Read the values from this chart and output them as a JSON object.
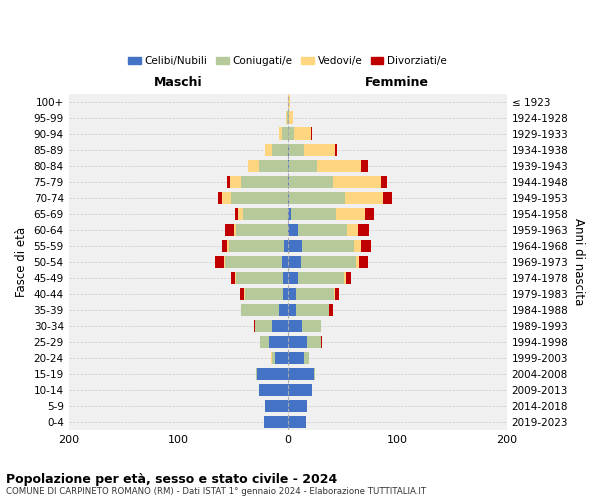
{
  "age_groups": [
    "0-4",
    "5-9",
    "10-14",
    "15-19",
    "20-24",
    "25-29",
    "30-34",
    "35-39",
    "40-44",
    "45-49",
    "50-54",
    "55-59",
    "60-64",
    "65-69",
    "70-74",
    "75-79",
    "80-84",
    "85-89",
    "90-94",
    "95-99",
    "100+"
  ],
  "birth_years": [
    "2019-2023",
    "2014-2018",
    "2009-2013",
    "2004-2008",
    "1999-2003",
    "1994-1998",
    "1989-1993",
    "1984-1988",
    "1979-1983",
    "1974-1978",
    "1969-1973",
    "1964-1968",
    "1959-1963",
    "1954-1958",
    "1949-1953",
    "1944-1948",
    "1939-1943",
    "1934-1938",
    "1929-1933",
    "1924-1928",
    "≤ 1923"
  ],
  "male": {
    "celibi": [
      22,
      21,
      26,
      28,
      12,
      17,
      14,
      8,
      4,
      4,
      5,
      3,
      0,
      0,
      0,
      0,
      0,
      0,
      0,
      0,
      0
    ],
    "coniugati": [
      0,
      0,
      0,
      1,
      2,
      8,
      16,
      35,
      35,
      43,
      52,
      51,
      47,
      41,
      52,
      43,
      26,
      14,
      5,
      1,
      0
    ],
    "vedovi": [
      0,
      0,
      0,
      0,
      1,
      0,
      0,
      0,
      1,
      1,
      1,
      1,
      2,
      4,
      8,
      10,
      10,
      7,
      3,
      1,
      0
    ],
    "divorziati": [
      0,
      0,
      0,
      0,
      0,
      0,
      1,
      0,
      4,
      4,
      8,
      5,
      8,
      3,
      4,
      2,
      0,
      0,
      0,
      0,
      0
    ]
  },
  "female": {
    "nubili": [
      17,
      18,
      22,
      24,
      15,
      18,
      13,
      8,
      8,
      9,
      12,
      13,
      9,
      3,
      1,
      1,
      1,
      1,
      0,
      0,
      0
    ],
    "coniugate": [
      0,
      0,
      0,
      1,
      4,
      12,
      17,
      30,
      34,
      42,
      50,
      48,
      45,
      41,
      51,
      40,
      26,
      14,
      6,
      1,
      0
    ],
    "vedove": [
      0,
      0,
      0,
      0,
      0,
      0,
      0,
      0,
      1,
      2,
      3,
      6,
      10,
      27,
      35,
      44,
      40,
      28,
      15,
      4,
      2
    ],
    "divorziate": [
      0,
      0,
      0,
      0,
      0,
      1,
      0,
      3,
      4,
      5,
      8,
      9,
      10,
      8,
      8,
      6,
      6,
      2,
      1,
      0,
      0
    ]
  },
  "colors": {
    "celibi": "#4472C4",
    "coniugati": "#b5c99a",
    "vedovi": "#FFD580",
    "divorziati": "#C00000"
  },
  "title": "Popolazione per età, sesso e stato civile - 2024",
  "subtitle": "COMUNE DI CARPINETO ROMANO (RM) - Dati ISTAT 1° gennaio 2024 - Elaborazione TUTTITALIA.IT",
  "xlabel_left": "Maschi",
  "xlabel_right": "Femmine",
  "ylabel_left": "Fasce di età",
  "ylabel_right": "Anni di nascita",
  "xlim": 200,
  "background_color": "#ffffff",
  "grid_color": "#cccccc"
}
